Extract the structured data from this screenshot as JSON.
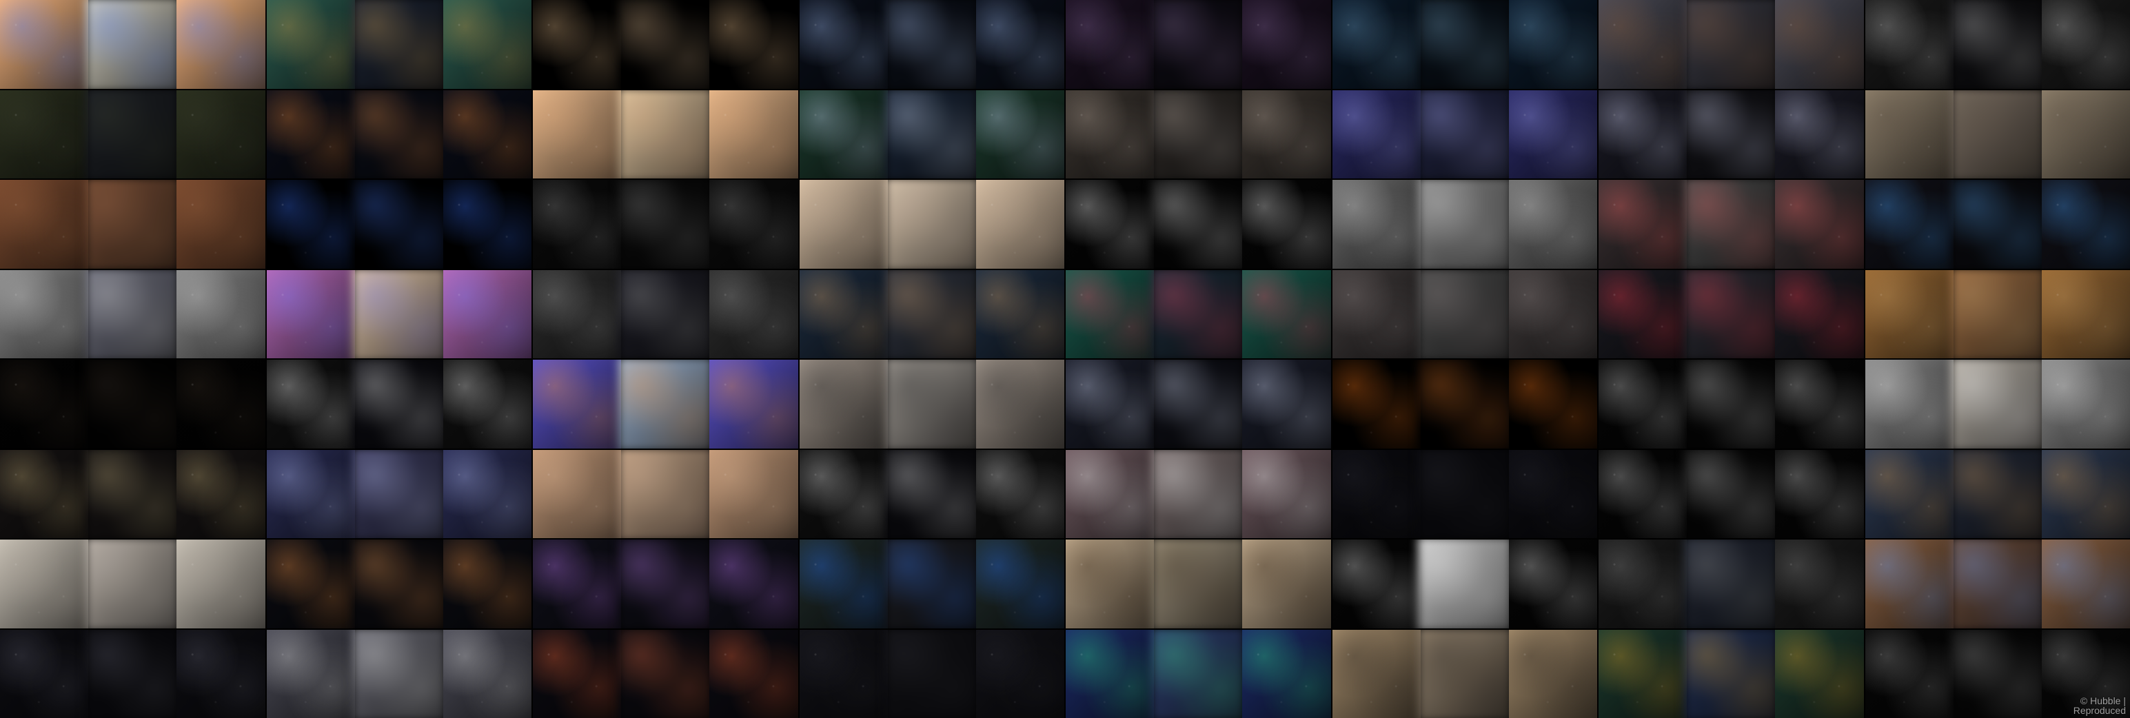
{
  "mosaic": {
    "rows": 8,
    "cols": 8,
    "tiles_per_group": 3,
    "groups": [
      {
        "colors": [
          "#f1b27e",
          "#d6d2c0",
          "#f1b27e"
        ],
        "accent": "#4b7bff"
      },
      {
        "colors": [
          "#2b5b4f",
          "#1b2436",
          "#2b5b4f"
        ],
        "accent": "#d6a24a"
      },
      {
        "colors": [
          "#000000",
          "#000000",
          "#000000"
        ],
        "accent": "#f0c490"
      },
      {
        "colors": [
          "#0a0f1a",
          "#0a0f1a",
          "#0a0f1a"
        ],
        "accent": "#a9c7ff"
      },
      {
        "colors": [
          "#1a1020",
          "#0e0c16",
          "#1a1020"
        ],
        "accent": "#8a6aa0"
      },
      {
        "colors": [
          "#0b1a2a",
          "#07101a",
          "#0b1a2a"
        ],
        "accent": "#6fa3c9"
      },
      {
        "colors": [
          "#4a4a55",
          "#3a3a45",
          "#4a4a55"
        ],
        "accent": "#8b5d3a"
      },
      {
        "colors": [
          "#1a1a1a",
          "#0f0f12",
          "#1a1a1a"
        ],
        "accent": "#c8c8c8"
      },
      {
        "colors": [
          "#2a2f1e",
          "#1d2026",
          "#2a2f1e"
        ],
        "accent": "#3b3f2d"
      },
      {
        "colors": [
          "#0a0d18",
          "#0a0d18",
          "#0a0d18"
        ],
        "accent": "#f08a3a"
      },
      {
        "colors": [
          "#e7b78a",
          "#e7c79a",
          "#e7b78a"
        ],
        "accent": "#d9a477"
      },
      {
        "colors": [
          "#1c3a2d",
          "#18253a",
          "#1c3a2d"
        ],
        "accent": "#cfe1ff"
      },
      {
        "colors": [
          "#3b3530",
          "#2f2b28",
          "#3b3530"
        ],
        "accent": "#b7a79a"
      },
      {
        "colors": [
          "#2a2a66",
          "#1f2446",
          "#2a2a66"
        ],
        "accent": "#a6a8ff"
      },
      {
        "colors": [
          "#1b1b26",
          "#121218",
          "#1b1b26"
        ],
        "accent": "#d9dcff"
      },
      {
        "colors": [
          "#8d7f6b",
          "#7d6f60",
          "#8d7f6b"
        ],
        "accent": "#5b4f42"
      },
      {
        "colors": [
          "#7a4a2f",
          "#7a4a2f",
          "#7a4a2f"
        ],
        "accent": "#9a623e"
      },
      {
        "colors": [
          "#000000",
          "#000000",
          "#000000"
        ],
        "accent": "#3a72ff"
      },
      {
        "colors": [
          "#0b0b0b",
          "#0a0a0a",
          "#0b0b0b"
        ],
        "accent": "#8a8a8a"
      },
      {
        "colors": [
          "#d8c0a5",
          "#dcc6aa",
          "#d8c0a5"
        ],
        "accent": "#bba58f"
      },
      {
        "colors": [
          "#050505",
          "#050505",
          "#050505"
        ],
        "accent": "#ffffff"
      },
      {
        "colors": [
          "#6c6c6c",
          "#8c8c8c",
          "#6c6c6c"
        ],
        "accent": "#d6d6d6"
      },
      {
        "colors": [
          "#3b3234",
          "#4a4a4a",
          "#3b3234"
        ],
        "accent": "#ff6b6b"
      },
      {
        "colors": [
          "#111118",
          "#0b0b10",
          "#111118"
        ],
        "accent": "#4aa3ff"
      },
      {
        "colors": [
          "#8a8a8a",
          "#6f7080",
          "#8a8a8a"
        ],
        "accent": "#cfcfcf"
      },
      {
        "colors": [
          "#b56ab8",
          "#e2c3a3",
          "#b56ab8"
        ],
        "accent": "#7a7cff"
      },
      {
        "colors": [
          "#2d2d2d",
          "#1c1c26",
          "#2d2d2d"
        ],
        "accent": "#a0a0a0"
      },
      {
        "colors": [
          "#1d2c3f",
          "#2d3340",
          "#1d2c3f"
        ],
        "accent": "#d9a56a"
      },
      {
        "colors": [
          "#19594c",
          "#1a2b3b",
          "#19594c"
        ],
        "accent": "#ff4a6a"
      },
      {
        "colors": [
          "#3f3a3a",
          "#4b4b4b",
          "#3f3a3a"
        ],
        "accent": "#8a7f7f"
      },
      {
        "colors": [
          "#1b1b22",
          "#2b2b35",
          "#1b1b22"
        ],
        "accent": "#ff3b4f"
      },
      {
        "colors": [
          "#9a6a35",
          "#a06a3a",
          "#9a6a35"
        ],
        "accent": "#c79b61"
      },
      {
        "colors": [
          "#020202",
          "#020202",
          "#020202"
        ],
        "accent": "#3b2f24"
      },
      {
        "colors": [
          "#101010",
          "#0b0b12",
          "#101010"
        ],
        "accent": "#ffffff"
      },
      {
        "colors": [
          "#5a52c9",
          "#9cb5d6",
          "#5a52c9"
        ],
        "accent": "#ff9b3a"
      },
      {
        "colors": [
          "#9d9288",
          "#a19a92",
          "#9d9288"
        ],
        "accent": "#2b2b2b"
      },
      {
        "colors": [
          "#1a1d2a",
          "#0e0f18",
          "#1a1d2a"
        ],
        "accent": "#d9e2ff"
      },
      {
        "colors": [
          "#000000",
          "#000000",
          "#000000"
        ],
        "accent": "#ff7a1a"
      },
      {
        "colors": [
          "#050505",
          "#050505",
          "#050505"
        ],
        "accent": "#d9d9d9"
      },
      {
        "colors": [
          "#8a8a8a",
          "#b8b0a5",
          "#8a8a8a"
        ],
        "accent": "#f0f0f0"
      },
      {
        "colors": [
          "#161313",
          "#161313",
          "#161313"
        ],
        "accent": "#c8b27a"
      },
      {
        "colors": [
          "#2a2d55",
          "#3a3a62",
          "#2a2d55"
        ],
        "accent": "#b9c4ff"
      },
      {
        "colors": [
          "#c59b7a",
          "#c5a080",
          "#c59b7a"
        ],
        "accent": "#d9b08e"
      },
      {
        "colors": [
          "#101010",
          "#0b0b10",
          "#101010"
        ],
        "accent": "#f0f0f0"
      },
      {
        "colors": [
          "#6f5a60",
          "#7a6c6c",
          "#6f5a60"
        ],
        "accent": "#ffffff"
      },
      {
        "colors": [
          "#0b0b10",
          "#0b0b10",
          "#0b0b10"
        ],
        "accent": "#2a2a33"
      },
      {
        "colors": [
          "#050505",
          "#050505",
          "#050505"
        ],
        "accent": "#d6d6d6"
      },
      {
        "colors": [
          "#2d3a52",
          "#20283a",
          "#2d3a52"
        ],
        "accent": "#d19a52"
      },
      {
        "colors": [
          "#c9c2b6",
          "#bdb3a8",
          "#c9c2b6"
        ],
        "accent": "#a79f95"
      },
      {
        "colors": [
          "#0b0c12",
          "#0b0b10",
          "#0b0c12"
        ],
        "accent": "#ff9b4a"
      },
      {
        "colors": [
          "#10101a",
          "#0e0e18",
          "#10101a"
        ],
        "accent": "#c47bff"
      },
      {
        "colors": [
          "#1f2a28",
          "#1c1d24",
          "#1f2a28"
        ],
        "accent": "#2a75ff"
      },
      {
        "colors": [
          "#bda78a",
          "#a09278",
          "#bda78a"
        ],
        "accent": "#3a2a1a"
      },
      {
        "colors": [
          "#050505",
          "#d0d0d0",
          "#050505"
        ],
        "accent": "#e9e9e9"
      },
      {
        "colors": [
          "#1b1b1b",
          "#202635",
          "#1b1b1b"
        ],
        "accent": "#8c8c8c"
      },
      {
        "colors": [
          "#8b6244",
          "#6f4b39",
          "#8b6244"
        ],
        "accent": "#6aa3ff"
      },
      {
        "colors": [
          "#0d0d12",
          "#0b0b10",
          "#0d0d12"
        ],
        "accent": "#5a5a6a"
      },
      {
        "colors": [
          "#4a4a55",
          "#6a6a75",
          "#4a4a55"
        ],
        "accent": "#e0e0e0"
      },
      {
        "colors": [
          "#0c0b12",
          "#0c0b12",
          "#0c0b12"
        ],
        "accent": "#ff6b3a"
      },
      {
        "colors": [
          "#111116",
          "#111116",
          "#111116"
        ],
        "accent": "#2a2a33"
      },
      {
        "colors": [
          "#1c2b67",
          "#2b3f77",
          "#1c2b67"
        ],
        "accent": "#2fe08a"
      },
      {
        "colors": [
          "#a38b6b",
          "#98856c",
          "#a38b6b"
        ],
        "accent": "#2a241e"
      },
      {
        "colors": [
          "#1d3a2e",
          "#203058",
          "#1d3a2e"
        ],
        "accent": "#e0a42a"
      },
      {
        "colors": [
          "#070707",
          "#070707",
          "#070707"
        ],
        "accent": "#a0a0a0"
      }
    ]
  },
  "watermark": {
    "line1": "© Hubble |",
    "line2": "Reproduced"
  }
}
